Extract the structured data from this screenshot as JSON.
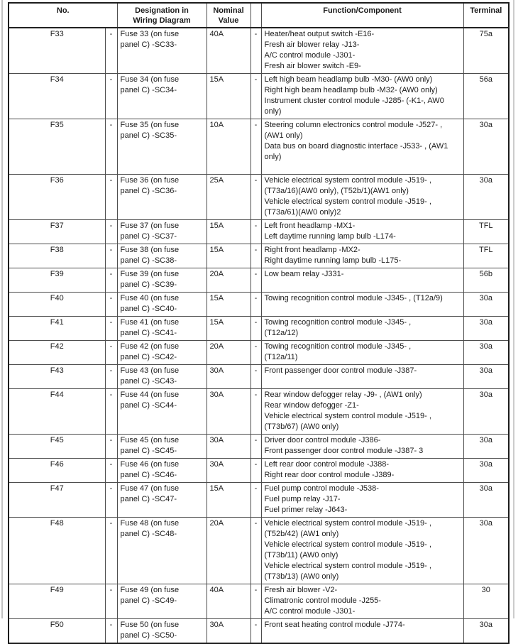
{
  "table": {
    "dash": "-",
    "headers": {
      "no": "No.",
      "designation": "Designation in\nWiring Diagram",
      "nominal": "Nominal\nValue",
      "function": "Function/Component",
      "terminal": "Terminal"
    },
    "rows": [
      {
        "no": "F33",
        "designation": "Fuse 33 (on fuse\npanel C) -SC33-",
        "nominal": "40A",
        "function": "Heater/heat output switch -E16-\nFresh air blower relay -J13-\nA/C control module -J301-\nFresh air blower switch -E9-",
        "terminal": "75a"
      },
      {
        "no": "F34",
        "designation": "Fuse 34 (on fuse\npanel C) -SC34-",
        "nominal": "15A",
        "function": "Left high beam headlamp bulb -M30- (AW0 only)\nRight high beam headlamp bulb -M32- (AW0 only)\nInstrument cluster control module -J285- (-K1-, AW0\nonly)",
        "terminal": "56a"
      },
      {
        "no": "F35",
        "designation": "Fuse 35 (on fuse\npanel C) -SC35-",
        "nominal": "10A",
        "function": "Steering column electronics control module -J527- ,\n(AW1 only)\nData bus on board diagnostic interface -J533- , (AW1\nonly)",
        "terminal": "30a"
      },
      {
        "no": "F36",
        "designation": "Fuse 36 (on fuse\npanel C) -SC36-",
        "nominal": "25A",
        "function": "Vehicle electrical system control module -J519- ,\n(T73a/16)(AW0 only), (T52b/1)(AW1 only)\nVehicle electrical system control module -J519- ,\n(T73a/61)(AW0 only)2",
        "terminal": "30a"
      },
      {
        "no": "F37",
        "designation": "Fuse 37 (on fuse\npanel C) -SC37-",
        "nominal": "15A",
        "function": "Left front headlamp -MX1-\nLeft daytime running lamp bulb -L174-",
        "terminal": "TFL"
      },
      {
        "no": "F38",
        "designation": "Fuse 38 (on fuse\npanel C) -SC38-",
        "nominal": "15A",
        "function": "Right front headlamp -MX2-\nRight daytime running lamp bulb -L175-",
        "terminal": "TFL"
      },
      {
        "no": "F39",
        "designation": "Fuse 39 (on fuse\npanel C) -SC39-",
        "nominal": "20A",
        "function": "Low beam relay -J331-",
        "terminal": "56b"
      },
      {
        "no": "F40",
        "designation": "Fuse 40 (on fuse\npanel C) -SC40-",
        "nominal": "15A",
        "function": "Towing recognition control module -J345- , (T12a/9)",
        "terminal": "30a"
      },
      {
        "no": "F41",
        "designation": "Fuse 41 (on fuse\npanel C) -SC41-",
        "nominal": "15A",
        "function": "Towing recognition control module -J345- ,\n(T12a/12)",
        "terminal": "30a"
      },
      {
        "no": "F42",
        "designation": "Fuse 42 (on fuse\npanel C) -SC42-",
        "nominal": "20A",
        "function": "Towing recognition control module -J345- ,\n(T12a/11)",
        "terminal": "30a"
      },
      {
        "no": "F43",
        "designation": "Fuse 43 (on fuse\npanel C) -SC43-",
        "nominal": "30A",
        "function": "Front passenger door control module -J387-",
        "terminal": "30a"
      },
      {
        "no": "F44",
        "designation": "Fuse 44 (on fuse\npanel C) -SC44-",
        "nominal": "30A",
        "function": "Rear window defogger relay -J9- , (AW1 only)\nRear window defogger -Z1-\nVehicle electrical system control module -J519- ,\n(T73b/67) (AW0 only)",
        "terminal": "30a"
      },
      {
        "no": "F45",
        "designation": "Fuse 45 (on fuse\npanel C) -SC45-",
        "nominal": "30A",
        "function": "Driver door control module -J386-\nFront passenger door control module -J387- 3",
        "terminal": "30a"
      },
      {
        "no": "F46",
        "designation": "Fuse 46 (on fuse\npanel C) -SC46-",
        "nominal": "30A",
        "function": "Left rear door control module -J388-\nRight rear door control module -J389-",
        "terminal": "30a"
      },
      {
        "no": "F47",
        "designation": "Fuse 47 (on fuse\npanel C) -SC47-",
        "nominal": "15A",
        "function": "Fuel pump control module -J538-\nFuel pump relay -J17-\nFuel primer relay -J643-",
        "terminal": "30a"
      },
      {
        "no": "F48",
        "designation": "Fuse 48 (on fuse\npanel C) -SC48-",
        "nominal": "20A",
        "function": "Vehicle electrical system control module -J519- ,\n(T52b/42) (AW1 only)\nVehicle electrical system control module -J519- ,\n(T73b/11) (AW0 only)\nVehicle electrical system control module -J519- ,\n(T73b/13) (AW0 only)",
        "terminal": "30a"
      },
      {
        "no": "F49",
        "designation": "Fuse 49 (on fuse\npanel C) -SC49-",
        "nominal": "40A",
        "function": "Fresh air blower -V2-\nClimatronic control module -J255-\nA/C control module -J301-",
        "terminal": "30"
      },
      {
        "no": "F50",
        "designation": "Fuse 50 (on fuse\npanel C) -SC50-",
        "nominal": "30A",
        "function": "Front seat heating control module -J774-",
        "terminal": "30a"
      }
    ]
  }
}
